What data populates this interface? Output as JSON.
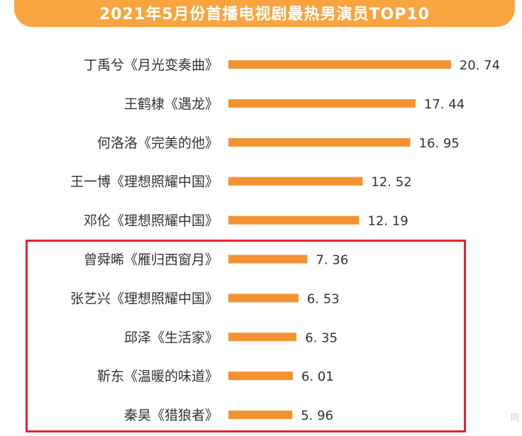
{
  "chart_data": {
    "type": "bar",
    "orientation": "horizontal",
    "title": "2021年5月份首播电视剧最热男演员TOP10",
    "categories": [
      "丁禹兮《月光变奏曲》",
      "王鹤棣《遇龙》",
      "何洛洛《完美的他》",
      "王一博《理想照耀中国》",
      "邓伦《理想照耀中国》",
      "曾舜晞《雁归西窗月》",
      "张艺兴《理想照耀中国》",
      "邱泽《生活家》",
      "靳东《温暖的味道》",
      "秦昊《猎狼者》"
    ],
    "values": [
      20.74,
      17.44,
      16.95,
      12.52,
      12.19,
      7.36,
      6.53,
      6.35,
      6.01,
      5.96
    ],
    "value_labels": [
      "20. 74",
      "17. 44",
      "16. 95",
      "12. 52",
      "12. 19",
      "7. 36",
      "6. 53",
      "6. 35",
      "6. 01",
      "5. 96"
    ],
    "xlabel": "",
    "ylabel": "",
    "bar_color": "#f29332",
    "grid": false,
    "legend": "none",
    "highlight": {
      "from_index": 5,
      "to_index": 9,
      "color": "#e8232c"
    }
  },
  "colors": {
    "banner": "#f8a53f",
    "title_text": "#ffffff",
    "label_text": "#333333"
  },
  "watermark": "同"
}
